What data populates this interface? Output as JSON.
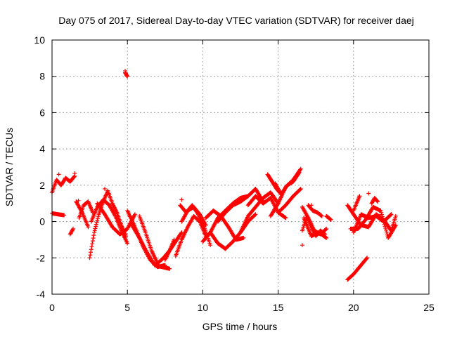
{
  "chart_data": {
    "type": "scatter",
    "title": "Day 075 of 2017, Sidereal Day-to-day VTEC variation (SDTVAR) for receiver daej",
    "xlabel": "GPS time / hours",
    "ylabel": "SDTVAR / TECUs",
    "xlim": [
      0,
      25
    ],
    "ylim": [
      -4,
      10
    ],
    "xticks": [
      0,
      5,
      10,
      15,
      20,
      25
    ],
    "yticks": [
      -4,
      -2,
      0,
      2,
      4,
      6,
      8,
      10
    ],
    "xtick_labels": [
      "0",
      "5",
      "10",
      "15",
      "20",
      "25"
    ],
    "ytick_labels": [
      "-4",
      "-2",
      "0",
      "2",
      "4",
      "6",
      "8",
      "10"
    ],
    "grid": true,
    "marker": "+",
    "series_color": "#ff0000",
    "tracks": [
      {
        "x": [
          0.0,
          0.3,
          0.6,
          0.9,
          1.2,
          1.5
        ],
        "y": [
          1.6,
          2.3,
          2.0,
          2.4,
          2.2,
          2.5
        ]
      },
      {
        "x": [
          0.0,
          0.4,
          0.8
        ],
        "y": [
          0.45,
          0.4,
          0.35
        ]
      },
      {
        "x": [
          1.2,
          1.4
        ],
        "y": [
          -0.7,
          -0.4
        ]
      },
      {
        "x": [
          1.6,
          2.0,
          2.4
        ],
        "y": [
          1.1,
          0.5,
          -0.3
        ]
      },
      {
        "x": [
          1.8,
          2.1,
          2.4,
          2.7
        ],
        "y": [
          0.2,
          0.9,
          1.1,
          0.5
        ]
      },
      {
        "x": [
          2.5,
          2.8,
          3.1,
          3.4,
          3.7,
          4.0,
          4.3,
          4.6,
          4.9
        ],
        "y": [
          -2.0,
          -0.6,
          0.4,
          1.1,
          1.7,
          1.0,
          0.5,
          -0.2,
          -0.8
        ]
      },
      {
        "x": [
          2.6,
          3.0,
          3.4,
          3.8,
          4.2,
          4.6,
          5.0
        ],
        "y": [
          0.0,
          0.8,
          1.2,
          0.9,
          0.3,
          -0.5,
          -1.2
        ]
      },
      {
        "x": [
          3.0,
          3.5,
          4.0,
          4.5,
          5.0,
          5.5
        ],
        "y": [
          1.0,
          0.4,
          -0.3,
          -0.7,
          -0.4,
          0.4
        ]
      },
      {
        "x": [
          4.85,
          4.9,
          4.95,
          5.0
        ],
        "y": [
          8.2,
          8.15,
          8.05,
          8.0
        ]
      },
      {
        "x": [
          5.0,
          5.5,
          6.0,
          6.5,
          7.0,
          7.5
        ],
        "y": [
          0.6,
          -0.3,
          -1.3,
          -2.1,
          -2.5,
          -2.4
        ]
      },
      {
        "x": [
          5.3,
          5.8,
          6.3,
          6.8,
          7.3,
          7.8
        ],
        "y": [
          -0.2,
          -0.9,
          -1.7,
          -2.4,
          -2.5,
          -2.6
        ]
      },
      {
        "x": [
          5.8,
          6.2,
          6.6,
          7.0,
          7.4,
          7.8,
          8.2,
          8.6
        ],
        "y": [
          0.3,
          -0.6,
          -1.6,
          -2.3,
          -2.0,
          -1.6,
          -1.1,
          -0.6
        ]
      },
      {
        "x": [
          7.5,
          7.8,
          8.1
        ],
        "y": [
          -2.1,
          -1.6,
          -1.0
        ]
      },
      {
        "x": [
          8.2,
          8.6,
          9.0,
          9.4,
          9.8,
          10.2
        ],
        "y": [
          -1.9,
          -1.0,
          -0.3,
          0.3,
          0.0,
          -0.8
        ]
      },
      {
        "x": [
          8.5,
          8.9,
          9.3,
          9.7,
          10.1,
          10.5
        ],
        "y": [
          0.9,
          0.5,
          0.9,
          0.4,
          -0.3,
          -1.3
        ]
      },
      {
        "x": [
          8.6,
          9.0,
          9.4,
          9.8,
          10.2
        ],
        "y": [
          0.0,
          0.6,
          0.8,
          0.4,
          -0.2
        ]
      },
      {
        "x": [
          10.0,
          10.5,
          11.0,
          11.5,
          12.0,
          12.5,
          13.0
        ],
        "y": [
          -1.1,
          -0.6,
          0.2,
          0.6,
          1.0,
          1.3,
          1.4
        ]
      },
      {
        "x": [
          10.2,
          10.7,
          11.2,
          11.7,
          12.2,
          12.7
        ],
        "y": [
          0.2,
          0.6,
          0.3,
          -0.3,
          -1.0,
          -0.9
        ]
      },
      {
        "x": [
          10.5,
          11.0,
          11.5,
          12.0,
          12.5,
          13.0,
          13.5
        ],
        "y": [
          -0.6,
          -1.2,
          -1.5,
          -1.1,
          -0.6,
          0.0,
          0.4
        ]
      },
      {
        "x": [
          11.0,
          11.5,
          12.0,
          12.5,
          13.0,
          13.5,
          14.0
        ],
        "y": [
          0.0,
          0.5,
          0.9,
          1.1,
          1.4,
          1.8,
          1.1
        ]
      },
      {
        "x": [
          12.5,
          13.0,
          13.5,
          14.0,
          14.5,
          15.0
        ],
        "y": [
          -0.6,
          0.3,
          0.8,
          1.3,
          1.6,
          1.0
        ]
      },
      {
        "x": [
          13.0,
          13.5,
          14.0,
          14.5,
          15.0,
          15.5
        ],
        "y": [
          0.9,
          1.4,
          1.0,
          1.3,
          0.5,
          0.2
        ]
      },
      {
        "x": [
          14.3,
          14.6,
          14.9,
          15.2
        ],
        "y": [
          2.6,
          2.2,
          1.8,
          1.5
        ]
      },
      {
        "x": [
          14.5,
          15.0,
          15.5,
          16.0,
          16.5
        ],
        "y": [
          0.3,
          1.0,
          1.9,
          2.3,
          2.9
        ]
      },
      {
        "x": [
          14.8,
          15.2,
          15.6,
          16.0,
          16.4
        ],
        "y": [
          2.1,
          1.5,
          2.0,
          2.2,
          2.7
        ]
      },
      {
        "x": [
          15.0,
          15.5,
          16.0,
          16.5
        ],
        "y": [
          0.5,
          0.9,
          1.4,
          1.8
        ]
      },
      {
        "x": [
          16.6,
          16.9,
          17.2,
          17.5,
          17.8,
          18.1
        ],
        "y": [
          -0.5,
          0.3,
          -0.3,
          -0.8,
          -0.5,
          -0.7
        ]
      },
      {
        "x": [
          16.6,
          17.0,
          17.4,
          17.8,
          18.2
        ],
        "y": [
          0.8,
          0.2,
          -0.5,
          -0.7,
          -0.4
        ]
      },
      {
        "x": [
          16.7,
          17.2,
          17.7,
          18.2
        ],
        "y": [
          0.2,
          -0.8,
          -0.6,
          -0.9
        ]
      },
      {
        "x": [
          17.0,
          17.3,
          17.6,
          17.9
        ],
        "y": [
          0.9,
          0.6,
          0.5,
          0.3
        ]
      },
      {
        "x": [
          18.2,
          18.5
        ],
        "y": [
          0.3,
          0.1
        ]
      },
      {
        "x": [
          19.6,
          20.0,
          20.5,
          21.0,
          21.5,
          22.0,
          22.5,
          22.8
        ],
        "y": [
          0.9,
          0.4,
          -0.2,
          -0.3,
          0.4,
          0.1,
          -0.5,
          0.3
        ]
      },
      {
        "x": [
          19.8,
          20.3,
          20.8,
          21.3,
          21.8,
          22.3,
          22.8
        ],
        "y": [
          -0.4,
          -0.4,
          0.1,
          0.8,
          0.6,
          -0.9,
          -0.2
        ]
      },
      {
        "x": [
          20.0,
          20.5,
          21.0,
          21.5,
          22.0,
          22.5
        ],
        "y": [
          -0.6,
          0.4,
          0.2,
          0.3,
          0.0,
          0.4
        ]
      },
      {
        "x": [
          19.6,
          20.0,
          20.4,
          20.9
        ],
        "y": [
          -3.2,
          -2.9,
          -2.5,
          -2.0
        ]
      },
      {
        "x": [
          21.2,
          21.4,
          21.6
        ],
        "y": [
          1.0,
          1.3,
          1.1
        ]
      },
      {
        "x": [
          20.0,
          20.4
        ],
        "y": [
          0.6,
          1.4
        ]
      }
    ],
    "points": [
      {
        "x": 0.45,
        "y": 2.6
      },
      {
        "x": 1.5,
        "y": 2.65
      },
      {
        "x": 1.75,
        "y": 1.15
      },
      {
        "x": 4.85,
        "y": 8.3
      },
      {
        "x": 16.6,
        "y": -1.3
      },
      {
        "x": 17.2,
        "y": 0.9
      },
      {
        "x": 21.0,
        "y": 1.55
      },
      {
        "x": 20.4,
        "y": 1.4
      },
      {
        "x": 8.6,
        "y": 1.2
      },
      {
        "x": 3.5,
        "y": 1.8
      }
    ]
  }
}
